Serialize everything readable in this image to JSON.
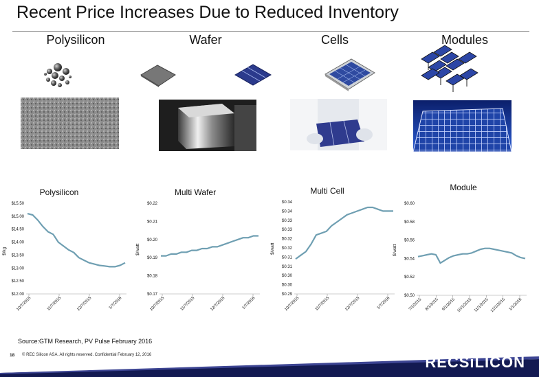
{
  "title": "Recent Price Increases Due to Reduced Inventory",
  "stages": [
    "Polysilicon",
    "Wafer",
    "Cells",
    "Modules"
  ],
  "source": "Source:GTM Research, PV Pulse February 2016",
  "footer": {
    "page": "18",
    "text": "© REC Silicon ASA. All rights reserved. Confidential  February 12, 2016",
    "logo": "RECSiLICON"
  },
  "colors": {
    "line": "#6f9fb2",
    "footer_band": "#131a52",
    "footer_stripe": "#3d4593"
  },
  "chart_data": [
    {
      "type": "line",
      "title": "Polysilicon",
      "ylabel": "$/kg",
      "ylim": [
        12.0,
        15.5
      ],
      "yticks": [
        "$15.50",
        "$15.00",
        "$14.50",
        "$14.00",
        "$13.50",
        "$13.00",
        "$12.50",
        "$12.00"
      ],
      "xticks": [
        "10/7/2015",
        "11/7/2015",
        "12/7/2015",
        "1/7/2016"
      ],
      "x": [
        0,
        1,
        2,
        3,
        4,
        5,
        6,
        7,
        8,
        9,
        10,
        11,
        12,
        13,
        14,
        15,
        16,
        17,
        18,
        19
      ],
      "values": [
        15.1,
        15.05,
        14.85,
        14.6,
        14.4,
        14.3,
        14.0,
        13.85,
        13.7,
        13.6,
        13.4,
        13.3,
        13.2,
        13.15,
        13.1,
        13.08,
        13.05,
        13.05,
        13.1,
        13.2
      ]
    },
    {
      "type": "line",
      "title": "Multi Wafer",
      "ylabel": "$/watt",
      "ylim": [
        0.17,
        0.22
      ],
      "yticks": [
        "$0.22",
        "$0.21",
        "$0.20",
        "$0.19",
        "$0.18",
        "$0.17"
      ],
      "xticks": [
        "10/7/2015",
        "11/7/2015",
        "12/7/2015",
        "1/7/2016"
      ],
      "x": [
        0,
        1,
        2,
        3,
        4,
        5,
        6,
        7,
        8,
        9,
        10,
        11,
        12,
        13,
        14,
        15,
        16,
        17,
        18,
        19
      ],
      "values": [
        0.191,
        0.191,
        0.192,
        0.192,
        0.193,
        0.193,
        0.194,
        0.194,
        0.195,
        0.195,
        0.196,
        0.196,
        0.197,
        0.198,
        0.199,
        0.2,
        0.201,
        0.201,
        0.202,
        0.202
      ]
    },
    {
      "type": "line",
      "title": "Multi Cell",
      "ylabel": "$/watt",
      "ylim": [
        0.29,
        0.34
      ],
      "yticks": [
        "$0.34",
        "$0.34",
        "$0.33",
        "$0.33",
        "$0.32",
        "$0.32",
        "$0.31",
        "$0.31",
        "$0.30",
        "$0.30",
        "$0.29"
      ],
      "xticks": [
        "10/7/2015",
        "11/7/2015",
        "12/7/2015",
        "1/7/2016"
      ],
      "x": [
        0,
        1,
        2,
        3,
        4,
        5,
        6,
        7,
        8,
        9,
        10,
        11,
        12,
        13,
        14,
        15,
        16,
        17,
        18,
        19
      ],
      "values": [
        0.309,
        0.311,
        0.313,
        0.317,
        0.322,
        0.323,
        0.324,
        0.327,
        0.329,
        0.331,
        0.333,
        0.334,
        0.335,
        0.336,
        0.337,
        0.337,
        0.336,
        0.335,
        0.335,
        0.335
      ]
    },
    {
      "type": "line",
      "title": "Module",
      "ylabel": "$/watt",
      "ylim": [
        0.5,
        0.6
      ],
      "yticks": [
        "$0.60",
        "$0.58",
        "$0.56",
        "$0.54",
        "$0.52",
        "$0.50"
      ],
      "xticks": [
        "7/1/2015",
        "8/1/2015",
        "9/1/2015",
        "10/1/2015",
        "11/1/2015",
        "12/1/2015",
        "1/1/2016"
      ],
      "x": [
        0,
        1,
        2,
        3,
        4,
        5,
        6,
        7,
        8,
        9,
        10,
        11,
        12,
        13,
        14,
        15,
        16,
        17,
        18,
        19,
        20,
        21,
        22,
        23,
        24
      ],
      "values": [
        0.542,
        0.543,
        0.544,
        0.545,
        0.544,
        0.535,
        0.538,
        0.541,
        0.543,
        0.544,
        0.545,
        0.545,
        0.546,
        0.548,
        0.55,
        0.551,
        0.551,
        0.55,
        0.549,
        0.548,
        0.547,
        0.546,
        0.543,
        0.541,
        0.54
      ]
    }
  ]
}
